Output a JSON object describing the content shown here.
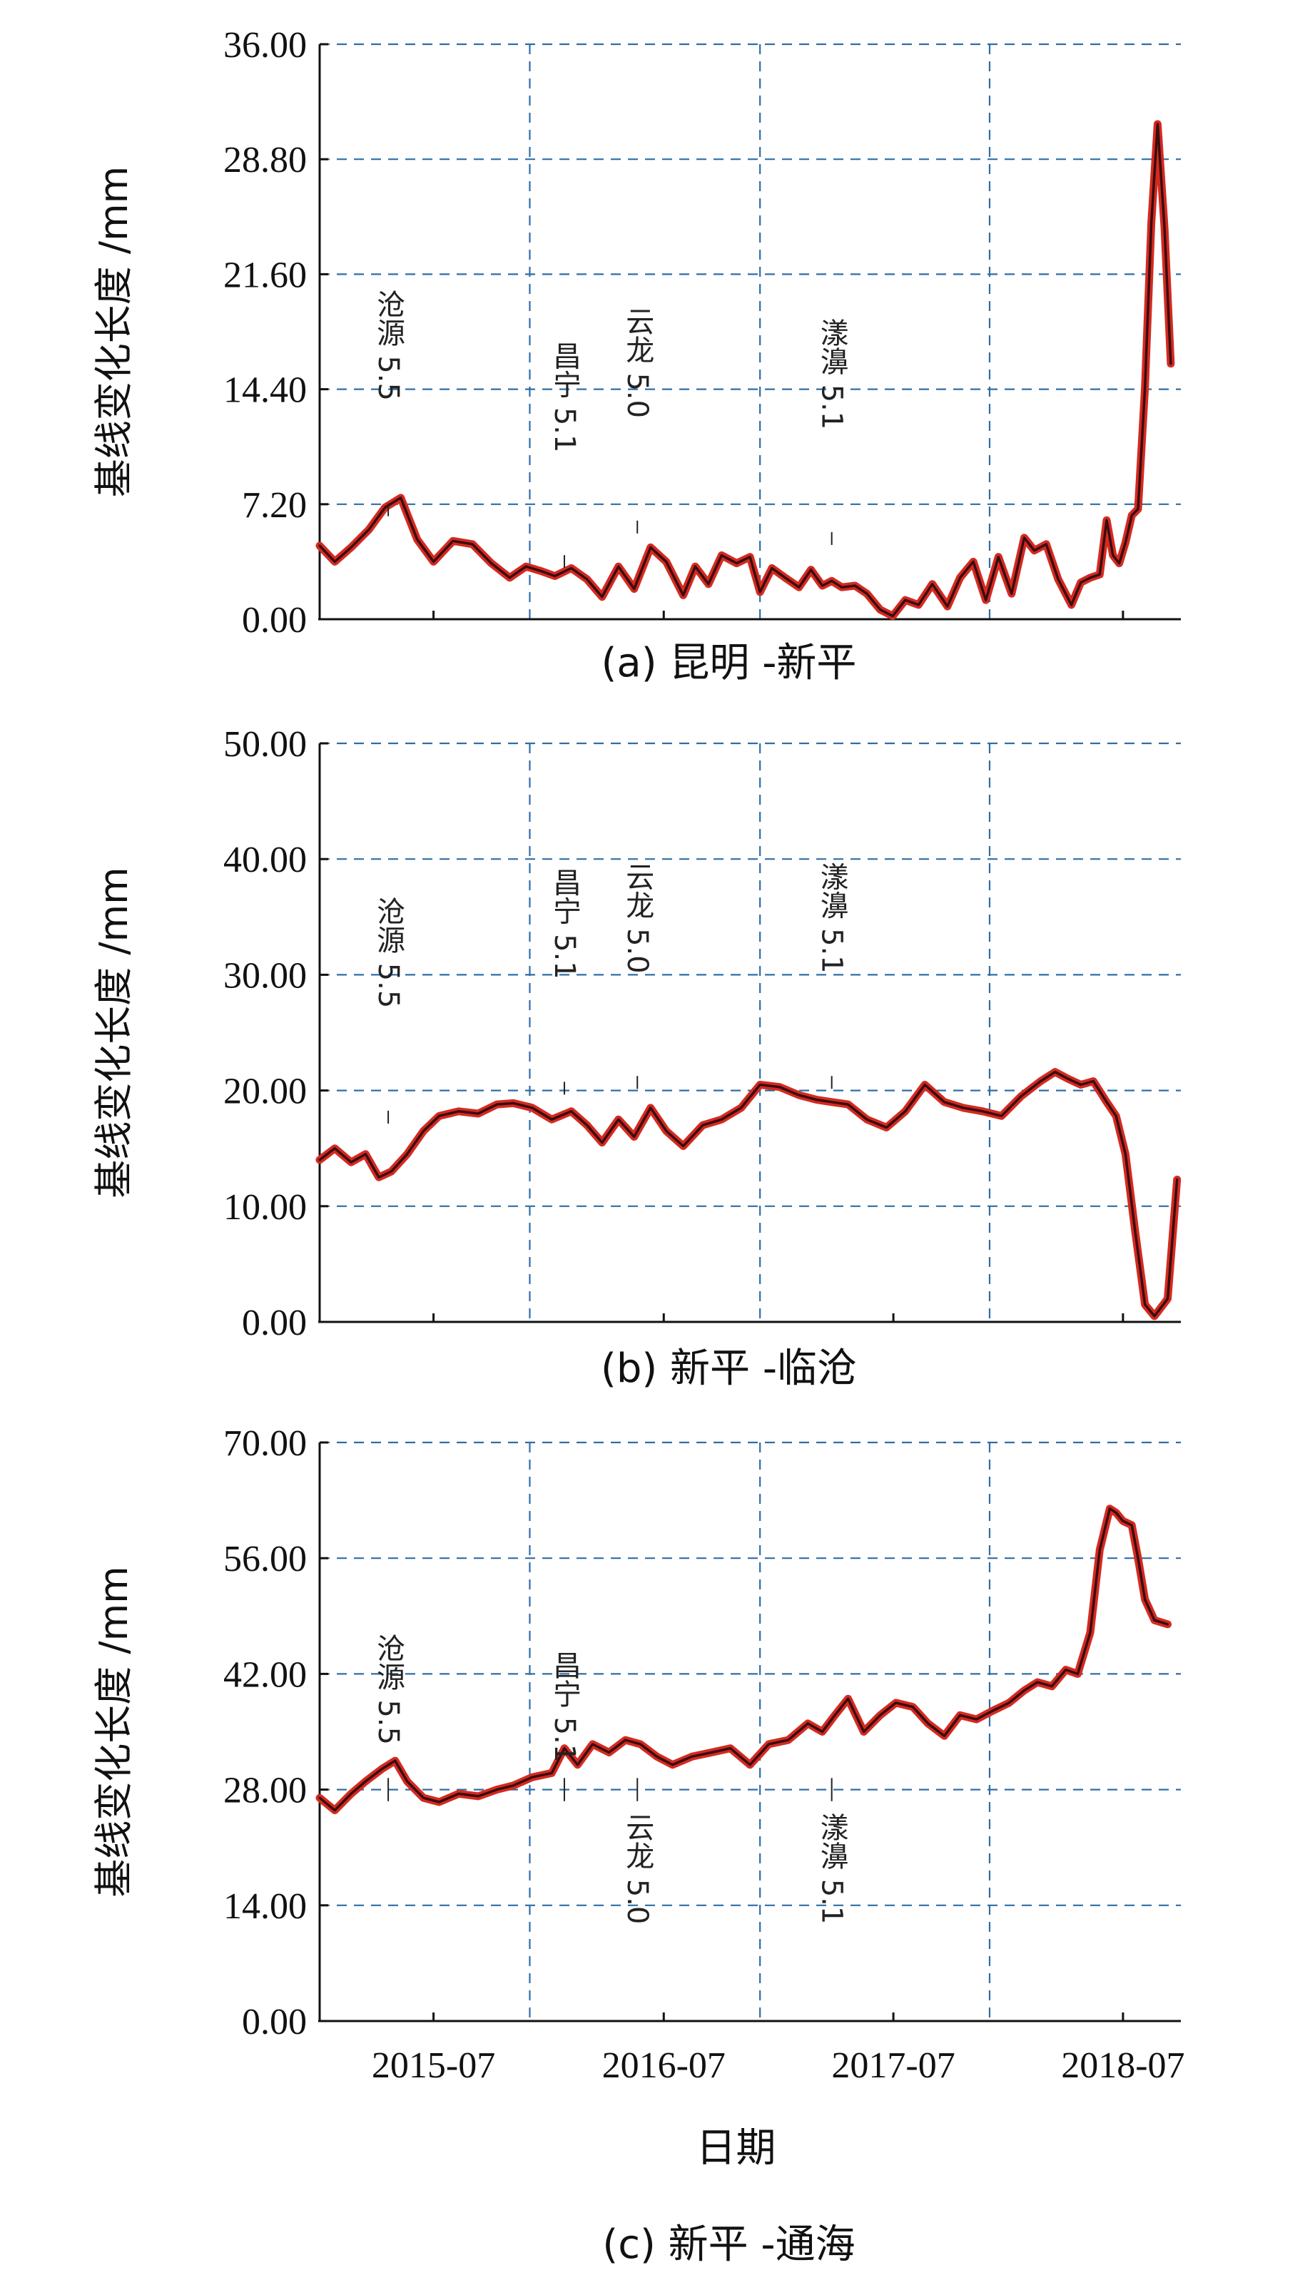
{
  "figure": {
    "x_tick_labels": [
      "2015-07",
      "2016-07",
      "2017-07",
      "2018-07"
    ],
    "x_axis_title": "日期"
  },
  "chart_data": [
    {
      "type": "line",
      "caption": "(a) 昆明 -新平",
      "ylabel": "基线变化长度 /mm",
      "x_range": [
        "2015-01",
        "2018-10"
      ],
      "ylim": [
        0,
        36
      ],
      "y_ticks": [
        "0.00",
        "7.20",
        "14.40",
        "21.60",
        "28.80",
        "36.00"
      ],
      "grid": "dashed, blue",
      "series": [
        {
          "colors": [
            "#d42a20",
            "#3a0c10"
          ],
          "x": [
            "2015-01-01",
            "2015-01-25",
            "2015-02-20",
            "2015-03-20",
            "2015-04-15",
            "2015-05-10",
            "2015-06-05",
            "2015-07-01",
            "2015-08-01",
            "2015-09-01",
            "2015-10-01",
            "2015-10-30",
            "2015-11-25",
            "2015-12-20",
            "2016-01-10",
            "2016-02-05",
            "2016-03-01",
            "2016-03-25",
            "2016-04-20",
            "2016-05-15",
            "2016-06-10",
            "2016-07-05",
            "2016-08-01",
            "2016-08-20",
            "2016-09-10",
            "2016-10-01",
            "2016-10-25",
            "2016-11-15",
            "2016-12-01",
            "2016-12-20",
            "2017-01-10",
            "2017-02-01",
            "2017-02-20",
            "2017-03-10",
            "2017-03-25",
            "2017-04-10",
            "2017-05-01",
            "2017-05-20",
            "2017-06-10",
            "2017-06-30",
            "2017-07-20",
            "2017-08-10",
            "2017-09-01",
            "2017-09-25",
            "2017-10-15",
            "2017-11-05",
            "2017-11-25",
            "2017-12-15",
            "2018-01-05",
            "2018-01-25",
            "2018-02-10",
            "2018-03-01",
            "2018-03-20",
            "2018-04-10",
            "2018-04-25",
            "2018-05-10",
            "2018-05-25",
            "2018-06-05",
            "2018-06-15",
            "2018-06-25",
            "2018-07-05",
            "2018-07-15",
            "2018-07-25",
            "2018-08-05",
            "2018-08-15",
            "2018-08-25",
            "2018-09-05",
            "2018-09-15"
          ],
          "values": [
            4.6,
            3.6,
            4.5,
            5.6,
            7.0,
            7.6,
            5.0,
            3.6,
            4.9,
            4.7,
            3.5,
            2.6,
            3.3,
            3.0,
            2.7,
            3.2,
            2.5,
            1.4,
            3.3,
            1.9,
            4.5,
            3.6,
            1.5,
            3.3,
            2.2,
            4.0,
            3.5,
            3.9,
            1.7,
            3.2,
            2.6,
            2.0,
            3.1,
            2.1,
            2.4,
            2.0,
            2.1,
            1.6,
            0.6,
            0.2,
            1.2,
            0.9,
            2.2,
            0.8,
            2.6,
            3.6,
            1.2,
            3.9,
            1.6,
            5.1,
            4.3,
            4.7,
            2.5,
            0.9,
            2.3,
            2.6,
            2.8,
            6.2,
            4.0,
            3.5,
            4.8,
            6.5,
            6.9,
            14.5,
            24.8,
            31.0,
            24.5,
            16.0
          ]
        }
      ],
      "annotations": [
        {
          "text": "沧源 5.5",
          "x": "2015-04-20"
        },
        {
          "text": "昌宁 5.1",
          "x": "2016-01-25"
        },
        {
          "text": "云龙 5.0",
          "x": "2016-05-20"
        },
        {
          "text": "漾濞 5.1",
          "x": "2017-03-25"
        }
      ]
    },
    {
      "type": "line",
      "caption": "(b) 新平 -临沧",
      "ylabel": "基线变化长度 /mm",
      "x_range": [
        "2015-01",
        "2018-10"
      ],
      "ylim": [
        0,
        50
      ],
      "y_ticks": [
        "0.00",
        "10.00",
        "20.00",
        "30.00",
        "40.00",
        "50.00"
      ],
      "grid": "dashed, blue",
      "series": [
        {
          "colors": [
            "#d42a20",
            "#3a0c10"
          ],
          "x": [
            "2015-01-01",
            "2015-01-25",
            "2015-02-20",
            "2015-03-15",
            "2015-04-05",
            "2015-04-25",
            "2015-05-20",
            "2015-06-15",
            "2015-07-10",
            "2015-08-10",
            "2015-09-10",
            "2015-10-10",
            "2015-11-05",
            "2015-12-05",
            "2016-01-05",
            "2016-02-05",
            "2016-03-01",
            "2016-03-25",
            "2016-04-20",
            "2016-05-15",
            "2016-06-10",
            "2016-07-05",
            "2016-08-01",
            "2016-09-01",
            "2016-10-01",
            "2016-11-01",
            "2016-12-01",
            "2017-01-01",
            "2017-02-01",
            "2017-03-01",
            "2017-03-25",
            "2017-04-20",
            "2017-05-20",
            "2017-06-20",
            "2017-07-20",
            "2017-08-20",
            "2017-09-20",
            "2017-10-20",
            "2017-11-20",
            "2017-12-20",
            "2018-01-20",
            "2018-02-20",
            "2018-03-15",
            "2018-04-05",
            "2018-04-25",
            "2018-05-15",
            "2018-06-05",
            "2018-06-20",
            "2018-07-05",
            "2018-07-20",
            "2018-08-05",
            "2018-08-20",
            "2018-09-10",
            "2018-09-25"
          ],
          "values": [
            14.0,
            15.0,
            13.8,
            14.5,
            12.5,
            13.0,
            14.5,
            16.5,
            17.8,
            18.2,
            18.0,
            18.8,
            18.9,
            18.5,
            17.5,
            18.2,
            17.0,
            15.5,
            17.5,
            16.0,
            18.5,
            16.5,
            15.2,
            17.0,
            17.5,
            18.5,
            20.5,
            20.3,
            19.6,
            19.2,
            19.0,
            18.8,
            17.5,
            16.8,
            18.2,
            20.5,
            19.0,
            18.5,
            18.2,
            17.8,
            19.5,
            20.8,
            21.6,
            21.0,
            20.5,
            20.8,
            19.0,
            17.8,
            14.5,
            8.0,
            1.5,
            0.5,
            2.0,
            12.3
          ]
        }
      ],
      "annotations": [
        {
          "text": "沧源 5.5",
          "x": "2015-04-20"
        },
        {
          "text": "昌宁 5.1",
          "x": "2016-01-25"
        },
        {
          "text": "云龙 5.0",
          "x": "2016-05-20"
        },
        {
          "text": "漾濞 5.1",
          "x": "2017-03-25"
        }
      ]
    },
    {
      "type": "line",
      "caption": "(c) 新平 -通海",
      "ylabel": "基线变化长度 /mm",
      "x_range": [
        "2015-01",
        "2018-10"
      ],
      "ylim": [
        0,
        70
      ],
      "y_ticks": [
        "0.00",
        "14.00",
        "28.00",
        "42.00",
        "56.00",
        "70.00"
      ],
      "grid": "dashed, blue",
      "series": [
        {
          "colors": [
            "#d42a20",
            "#3a0c10"
          ],
          "x": [
            "2015-01-01",
            "2015-01-25",
            "2015-02-20",
            "2015-03-15",
            "2015-04-10",
            "2015-05-01",
            "2015-05-20",
            "2015-06-15",
            "2015-07-10",
            "2015-08-10",
            "2015-09-10",
            "2015-10-10",
            "2015-11-05",
            "2015-12-05",
            "2016-01-05",
            "2016-01-25",
            "2016-02-15",
            "2016-03-10",
            "2016-04-05",
            "2016-05-01",
            "2016-05-25",
            "2016-06-20",
            "2016-07-15",
            "2016-08-15",
            "2016-09-15",
            "2016-10-15",
            "2016-11-15",
            "2016-12-15",
            "2017-01-15",
            "2017-02-15",
            "2017-03-10",
            "2017-03-30",
            "2017-04-20",
            "2017-05-15",
            "2017-06-10",
            "2017-07-05",
            "2017-08-01",
            "2017-08-25",
            "2017-09-20",
            "2017-10-15",
            "2017-11-10",
            "2017-12-05",
            "2018-01-01",
            "2018-01-25",
            "2018-02-15",
            "2018-03-10",
            "2018-04-01",
            "2018-04-20",
            "2018-05-10",
            "2018-05-25",
            "2018-06-10",
            "2018-06-20",
            "2018-07-01",
            "2018-07-15",
            "2018-07-25",
            "2018-08-05",
            "2018-08-20",
            "2018-09-10"
          ],
          "values": [
            27.0,
            25.5,
            27.5,
            29.0,
            30.5,
            31.5,
            29.0,
            27.0,
            26.5,
            27.5,
            27.2,
            28.0,
            28.5,
            29.5,
            30.0,
            33.0,
            31.0,
            33.5,
            32.5,
            34.0,
            33.5,
            32.0,
            31.0,
            32.0,
            32.5,
            33.0,
            31.0,
            33.5,
            34.0,
            36.0,
            35.0,
            37.0,
            39.0,
            35.0,
            37.0,
            38.5,
            38.0,
            36.0,
            34.5,
            37.0,
            36.5,
            37.5,
            38.5,
            40.0,
            41.0,
            40.5,
            42.5,
            42.0,
            47.0,
            57.0,
            62.0,
            61.5,
            60.5,
            60.0,
            56.0,
            51.0,
            48.5,
            48.0
          ]
        }
      ],
      "annotations": [
        {
          "text": "沧源 5.5",
          "x": "2015-04-20"
        },
        {
          "text": "昌宁 5.1",
          "x": "2016-01-25"
        },
        {
          "text": "云龙 5.0",
          "x": "2016-05-20"
        },
        {
          "text": "漾濞 5.1",
          "x": "2017-03-25"
        }
      ]
    }
  ]
}
